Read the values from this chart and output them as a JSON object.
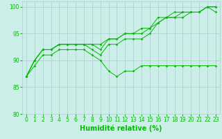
{
  "xlabel": "Humidité relative (%)",
  "background_color": "#cceee8",
  "grid_color": "#aacccc",
  "line_color": "#00bb00",
  "xlim": [
    -0.5,
    23.5
  ],
  "ylim": [
    80,
    101
  ],
  "yticks": [
    80,
    85,
    90,
    95,
    100
  ],
  "xticks": [
    0,
    1,
    2,
    3,
    4,
    5,
    6,
    7,
    8,
    9,
    10,
    11,
    12,
    13,
    14,
    15,
    16,
    17,
    18,
    19,
    20,
    21,
    22,
    23
  ],
  "series": [
    [
      87,
      89,
      91,
      91,
      92,
      92,
      92,
      92,
      91,
      90,
      88,
      87,
      88,
      88,
      89,
      89,
      89,
      89,
      89,
      89,
      89,
      89,
      89,
      89
    ],
    [
      87,
      90,
      92,
      92,
      93,
      93,
      93,
      93,
      92,
      91,
      93,
      93,
      94,
      94,
      94,
      95,
      97,
      98,
      98,
      98,
      99,
      99,
      100,
      99
    ],
    [
      87,
      90,
      92,
      92,
      93,
      93,
      93,
      93,
      93,
      92,
      94,
      94,
      95,
      95,
      95,
      96,
      97,
      98,
      98,
      99,
      99,
      99,
      100,
      100
    ],
    [
      87,
      90,
      92,
      92,
      93,
      93,
      93,
      93,
      93,
      93,
      94,
      94,
      95,
      95,
      96,
      96,
      98,
      98,
      99,
      99,
      99,
      99,
      100,
      100
    ]
  ],
  "xlabel_fontsize": 7,
  "tick_fontsize": 5.5,
  "linewidth": 0.7,
  "markersize": 1.8
}
